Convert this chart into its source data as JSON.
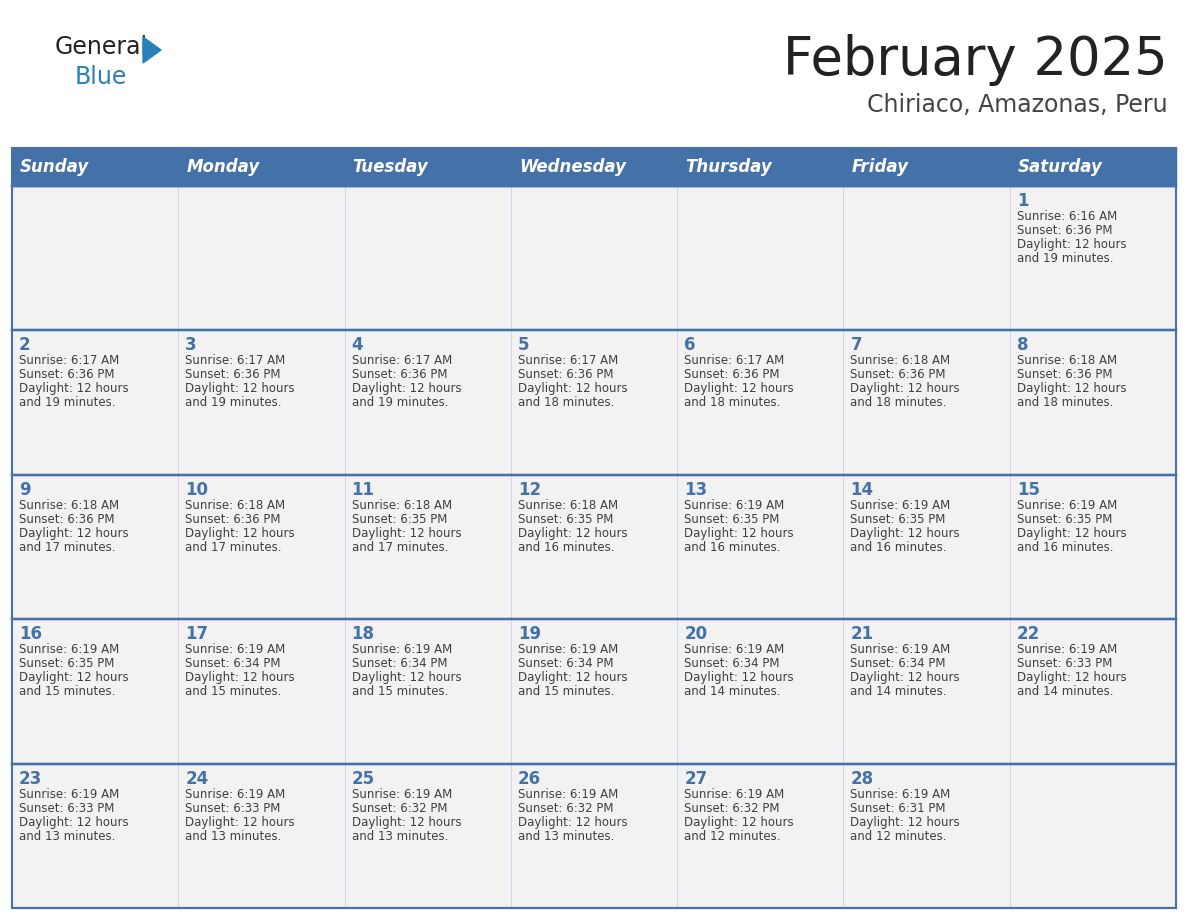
{
  "title": "February 2025",
  "subtitle": "Chiriaco, Amazonas, Peru",
  "days_of_week": [
    "Sunday",
    "Monday",
    "Tuesday",
    "Wednesday",
    "Thursday",
    "Friday",
    "Saturday"
  ],
  "header_bg": "#4472a8",
  "header_text": "#ffffff",
  "cell_bg": "#f2f2f2",
  "cell_border": "#4472a8",
  "day_num_color": "#4472a8",
  "text_color": "#404040",
  "title_color": "#222222",
  "subtitle_color": "#444444",
  "logo_general_color": "#222222",
  "logo_blue_color": "#2980b9",
  "calendar_data": [
    [
      {
        "day": null,
        "info": null
      },
      {
        "day": null,
        "info": null
      },
      {
        "day": null,
        "info": null
      },
      {
        "day": null,
        "info": null
      },
      {
        "day": null,
        "info": null
      },
      {
        "day": null,
        "info": null
      },
      {
        "day": 1,
        "info": "Sunrise: 6:16 AM\nSunset: 6:36 PM\nDaylight: 12 hours\nand 19 minutes."
      }
    ],
    [
      {
        "day": 2,
        "info": "Sunrise: 6:17 AM\nSunset: 6:36 PM\nDaylight: 12 hours\nand 19 minutes."
      },
      {
        "day": 3,
        "info": "Sunrise: 6:17 AM\nSunset: 6:36 PM\nDaylight: 12 hours\nand 19 minutes."
      },
      {
        "day": 4,
        "info": "Sunrise: 6:17 AM\nSunset: 6:36 PM\nDaylight: 12 hours\nand 19 minutes."
      },
      {
        "day": 5,
        "info": "Sunrise: 6:17 AM\nSunset: 6:36 PM\nDaylight: 12 hours\nand 18 minutes."
      },
      {
        "day": 6,
        "info": "Sunrise: 6:17 AM\nSunset: 6:36 PM\nDaylight: 12 hours\nand 18 minutes."
      },
      {
        "day": 7,
        "info": "Sunrise: 6:18 AM\nSunset: 6:36 PM\nDaylight: 12 hours\nand 18 minutes."
      },
      {
        "day": 8,
        "info": "Sunrise: 6:18 AM\nSunset: 6:36 PM\nDaylight: 12 hours\nand 18 minutes."
      }
    ],
    [
      {
        "day": 9,
        "info": "Sunrise: 6:18 AM\nSunset: 6:36 PM\nDaylight: 12 hours\nand 17 minutes."
      },
      {
        "day": 10,
        "info": "Sunrise: 6:18 AM\nSunset: 6:36 PM\nDaylight: 12 hours\nand 17 minutes."
      },
      {
        "day": 11,
        "info": "Sunrise: 6:18 AM\nSunset: 6:35 PM\nDaylight: 12 hours\nand 17 minutes."
      },
      {
        "day": 12,
        "info": "Sunrise: 6:18 AM\nSunset: 6:35 PM\nDaylight: 12 hours\nand 16 minutes."
      },
      {
        "day": 13,
        "info": "Sunrise: 6:19 AM\nSunset: 6:35 PM\nDaylight: 12 hours\nand 16 minutes."
      },
      {
        "day": 14,
        "info": "Sunrise: 6:19 AM\nSunset: 6:35 PM\nDaylight: 12 hours\nand 16 minutes."
      },
      {
        "day": 15,
        "info": "Sunrise: 6:19 AM\nSunset: 6:35 PM\nDaylight: 12 hours\nand 16 minutes."
      }
    ],
    [
      {
        "day": 16,
        "info": "Sunrise: 6:19 AM\nSunset: 6:35 PM\nDaylight: 12 hours\nand 15 minutes."
      },
      {
        "day": 17,
        "info": "Sunrise: 6:19 AM\nSunset: 6:34 PM\nDaylight: 12 hours\nand 15 minutes."
      },
      {
        "day": 18,
        "info": "Sunrise: 6:19 AM\nSunset: 6:34 PM\nDaylight: 12 hours\nand 15 minutes."
      },
      {
        "day": 19,
        "info": "Sunrise: 6:19 AM\nSunset: 6:34 PM\nDaylight: 12 hours\nand 15 minutes."
      },
      {
        "day": 20,
        "info": "Sunrise: 6:19 AM\nSunset: 6:34 PM\nDaylight: 12 hours\nand 14 minutes."
      },
      {
        "day": 21,
        "info": "Sunrise: 6:19 AM\nSunset: 6:34 PM\nDaylight: 12 hours\nand 14 minutes."
      },
      {
        "day": 22,
        "info": "Sunrise: 6:19 AM\nSunset: 6:33 PM\nDaylight: 12 hours\nand 14 minutes."
      }
    ],
    [
      {
        "day": 23,
        "info": "Sunrise: 6:19 AM\nSunset: 6:33 PM\nDaylight: 12 hours\nand 13 minutes."
      },
      {
        "day": 24,
        "info": "Sunrise: 6:19 AM\nSunset: 6:33 PM\nDaylight: 12 hours\nand 13 minutes."
      },
      {
        "day": 25,
        "info": "Sunrise: 6:19 AM\nSunset: 6:32 PM\nDaylight: 12 hours\nand 13 minutes."
      },
      {
        "day": 26,
        "info": "Sunrise: 6:19 AM\nSunset: 6:32 PM\nDaylight: 12 hours\nand 13 minutes."
      },
      {
        "day": 27,
        "info": "Sunrise: 6:19 AM\nSunset: 6:32 PM\nDaylight: 12 hours\nand 12 minutes."
      },
      {
        "day": 28,
        "info": "Sunrise: 6:19 AM\nSunset: 6:31 PM\nDaylight: 12 hours\nand 12 minutes."
      },
      {
        "day": null,
        "info": null
      }
    ]
  ]
}
